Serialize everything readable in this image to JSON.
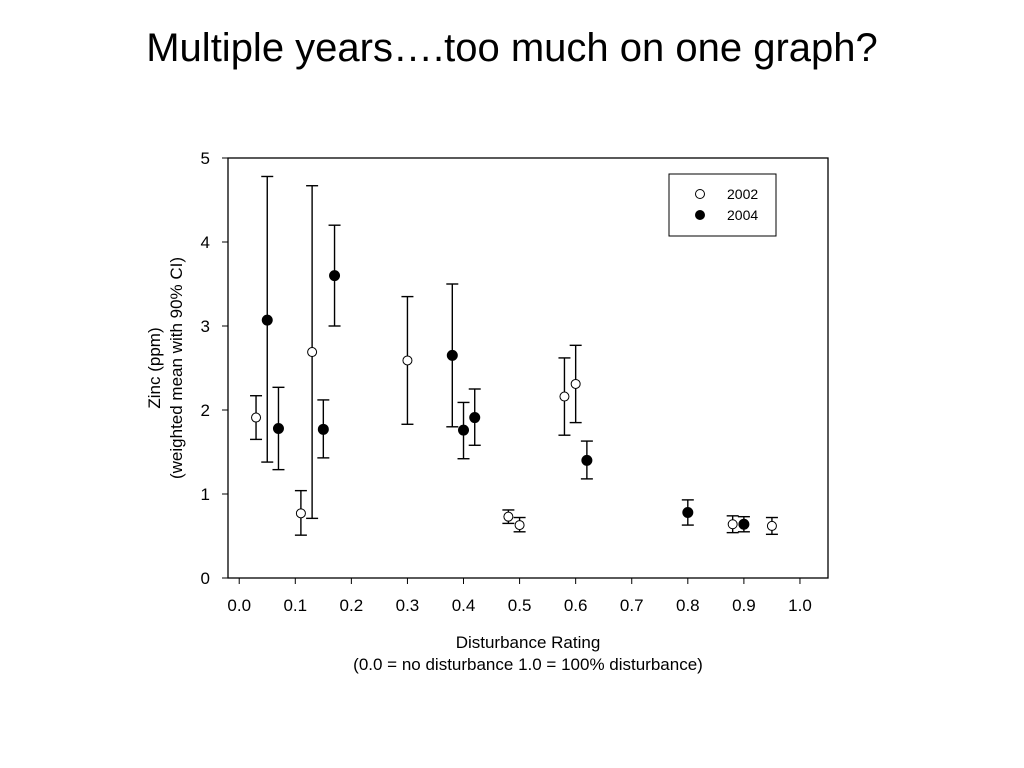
{
  "slide": {
    "title": "Multiple years….too much on one graph?"
  },
  "chart_data": {
    "type": "scatter",
    "error_bars": "90% CI",
    "xlabel": "Disturbance Rating",
    "xlabel_note": "(0.0 = no disturbance 1.0 = 100% disturbance)",
    "ylabel_line1": "Zinc (ppm)",
    "ylabel_line2": "(weighted mean with 90% CI)",
    "xlim": [
      -0.02,
      1.05
    ],
    "ylim": [
      0,
      5
    ],
    "xticks": [
      "0.0",
      "0.1",
      "0.2",
      "0.3",
      "0.4",
      "0.5",
      "0.6",
      "0.7",
      "0.8",
      "0.9",
      "1.0"
    ],
    "xtick_values": [
      0.0,
      0.1,
      0.2,
      0.3,
      0.4,
      0.5,
      0.6,
      0.7,
      0.8,
      0.9,
      1.0
    ],
    "yticks": [
      "0",
      "1",
      "2",
      "3",
      "4",
      "5"
    ],
    "ytick_values": [
      0,
      1,
      2,
      3,
      4,
      5
    ],
    "grid": false,
    "legend_position": "top-right",
    "series": [
      {
        "name": "2002",
        "marker": "open-circle",
        "points": [
          {
            "x": 0.03,
            "y": 1.91,
            "lo": 1.65,
            "hi": 2.17
          },
          {
            "x": 0.11,
            "y": 0.77,
            "lo": 0.51,
            "hi": 1.04
          },
          {
            "x": 0.13,
            "y": 2.69,
            "lo": 0.71,
            "hi": 4.67
          },
          {
            "x": 0.3,
            "y": 2.59,
            "lo": 1.83,
            "hi": 3.35
          },
          {
            "x": 0.48,
            "y": 0.73,
            "lo": 0.65,
            "hi": 0.81
          },
          {
            "x": 0.5,
            "y": 0.63,
            "lo": 0.55,
            "hi": 0.72
          },
          {
            "x": 0.58,
            "y": 2.16,
            "lo": 1.7,
            "hi": 2.62
          },
          {
            "x": 0.6,
            "y": 2.31,
            "lo": 1.85,
            "hi": 2.77
          },
          {
            "x": 0.88,
            "y": 0.64,
            "lo": 0.54,
            "hi": 0.74
          },
          {
            "x": 0.95,
            "y": 0.62,
            "lo": 0.52,
            "hi": 0.72
          }
        ]
      },
      {
        "name": "2004",
        "marker": "filled-circle",
        "points": [
          {
            "x": 0.05,
            "y": 3.07,
            "lo": 1.38,
            "hi": 4.78
          },
          {
            "x": 0.07,
            "y": 1.78,
            "lo": 1.29,
            "hi": 2.27
          },
          {
            "x": 0.15,
            "y": 1.77,
            "lo": 1.43,
            "hi": 2.12
          },
          {
            "x": 0.17,
            "y": 3.6,
            "lo": 3.0,
            "hi": 4.2
          },
          {
            "x": 0.38,
            "y": 2.65,
            "lo": 1.8,
            "hi": 3.5
          },
          {
            "x": 0.4,
            "y": 1.76,
            "lo": 1.42,
            "hi": 2.09
          },
          {
            "x": 0.42,
            "y": 1.91,
            "lo": 1.58,
            "hi": 2.25
          },
          {
            "x": 0.62,
            "y": 1.4,
            "lo": 1.18,
            "hi": 1.63
          },
          {
            "x": 0.8,
            "y": 0.78,
            "lo": 0.63,
            "hi": 0.93
          },
          {
            "x": 0.9,
            "y": 0.64,
            "lo": 0.55,
            "hi": 0.73
          }
        ]
      }
    ]
  }
}
